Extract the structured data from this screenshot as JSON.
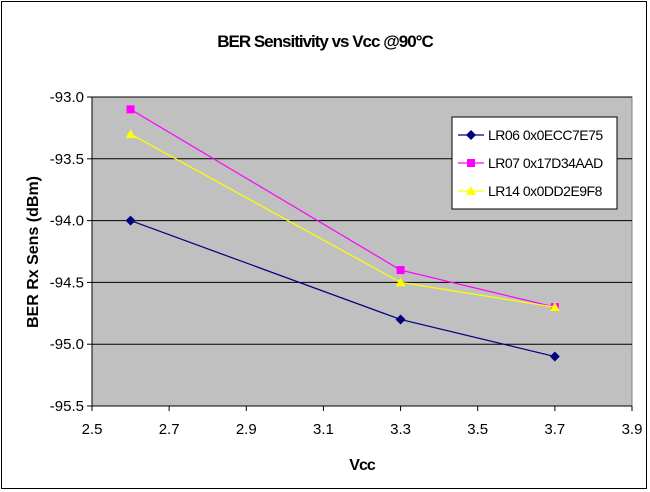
{
  "chart_data": {
    "type": "line",
    "title": "BER Sensitivity vs Vcc @90°C",
    "xlabel": "Vcc",
    "ylabel": "BER Rx Sens (dBm)",
    "xlim": [
      2.5,
      3.9
    ],
    "ylim": [
      -95.5,
      -93.0
    ],
    "x_ticks": [
      "2.5",
      "2.7",
      "2.9",
      "3.1",
      "3.3",
      "3.5",
      "3.7",
      "3.9"
    ],
    "y_ticks": [
      "-93.0",
      "-93.5",
      "-94.0",
      "-94.5",
      "-95.0",
      "-95.5"
    ],
    "grid": "horizontal",
    "plot_background": "#c0c0c0",
    "legend_position": "right",
    "series": [
      {
        "name": "LR06 0x0ECC7E75",
        "color": "#000080",
        "marker": "diamond",
        "x": [
          2.6,
          3.3,
          3.7
        ],
        "y": [
          -94.0,
          -94.8,
          -95.1
        ]
      },
      {
        "name": "LR07 0x17D34AAD",
        "color": "#ff00ff",
        "marker": "square",
        "x": [
          2.6,
          3.3,
          3.7
        ],
        "y": [
          -93.1,
          -94.4,
          -94.7
        ]
      },
      {
        "name": "LR14 0x0DD2E9F8",
        "color": "#ffff00",
        "marker": "triangle",
        "x": [
          2.6,
          3.3,
          3.7
        ],
        "y": [
          -93.3,
          -94.5,
          -94.7
        ]
      }
    ]
  }
}
